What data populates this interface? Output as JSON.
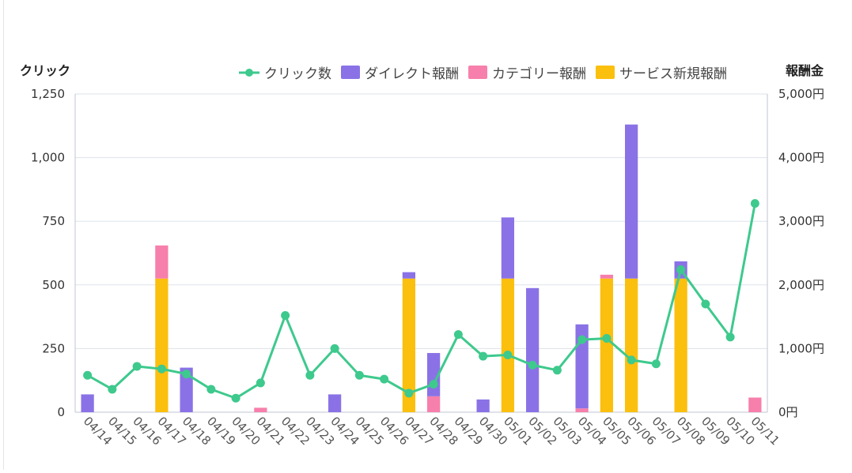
{
  "chart_data": {
    "type": "bar",
    "y_left_label": "クリック",
    "y_right_label": "報酬金",
    "y_left_ticks": [
      "0",
      "250",
      "500",
      "750",
      "1,000",
      "1,250"
    ],
    "y_right_ticks": [
      "0円",
      "1,000円",
      "2,000円",
      "3,000円",
      "4,000円",
      "5,000円"
    ],
    "y_left_range": [
      0,
      1250
    ],
    "y_right_range": [
      0,
      5000
    ],
    "grid": true,
    "legend_position": "top-right",
    "categories": [
      "04/14",
      "04/15",
      "04/16",
      "04/17",
      "04/18",
      "04/19",
      "04/20",
      "04/21",
      "04/22",
      "04/23",
      "04/24",
      "04/25",
      "04/26",
      "04/27",
      "04/28",
      "04/29",
      "04/30",
      "05/01",
      "05/02",
      "05/03",
      "05/04",
      "05/05",
      "05/06",
      "05/07",
      "05/08",
      "05/09",
      "05/10",
      "05/11"
    ],
    "series": [
      {
        "name": "クリック数",
        "kind": "line",
        "axis": "left",
        "color": "#3ec98d",
        "values": [
          145,
          90,
          180,
          170,
          150,
          90,
          55,
          115,
          380,
          145,
          250,
          145,
          130,
          75,
          110,
          305,
          220,
          225,
          185,
          165,
          285,
          290,
          205,
          190,
          560,
          425,
          295,
          820
        ]
      },
      {
        "name": "サービス新規報酬",
        "kind": "bar",
        "axis": "right",
        "color": "#fbbf0e",
        "values": [
          0,
          0,
          0,
          2100,
          0,
          0,
          0,
          0,
          0,
          0,
          0,
          0,
          0,
          2100,
          0,
          0,
          0,
          2100,
          0,
          0,
          0,
          2100,
          2100,
          0,
          2100,
          0,
          0,
          0
        ]
      },
      {
        "name": "カテゴリー報酬",
        "kind": "bar",
        "axis": "right",
        "color": "#f77fab",
        "values": [
          0,
          0,
          0,
          520,
          0,
          0,
          0,
          70,
          0,
          0,
          0,
          0,
          0,
          0,
          250,
          0,
          0,
          0,
          0,
          0,
          60,
          60,
          0,
          0,
          0,
          0,
          0,
          230
        ]
      },
      {
        "name": "ダイレクト報酬",
        "kind": "bar",
        "axis": "right",
        "color": "#8a72e6",
        "values": [
          280,
          0,
          0,
          0,
          700,
          0,
          0,
          0,
          0,
          0,
          280,
          0,
          0,
          100,
          680,
          0,
          200,
          960,
          1950,
          0,
          1320,
          0,
          2420,
          0,
          270,
          0,
          0,
          0
        ]
      }
    ],
    "legend_order": [
      "クリック数",
      "ダイレクト報酬",
      "カテゴリー報酬",
      "サービス新規報酬"
    ]
  }
}
